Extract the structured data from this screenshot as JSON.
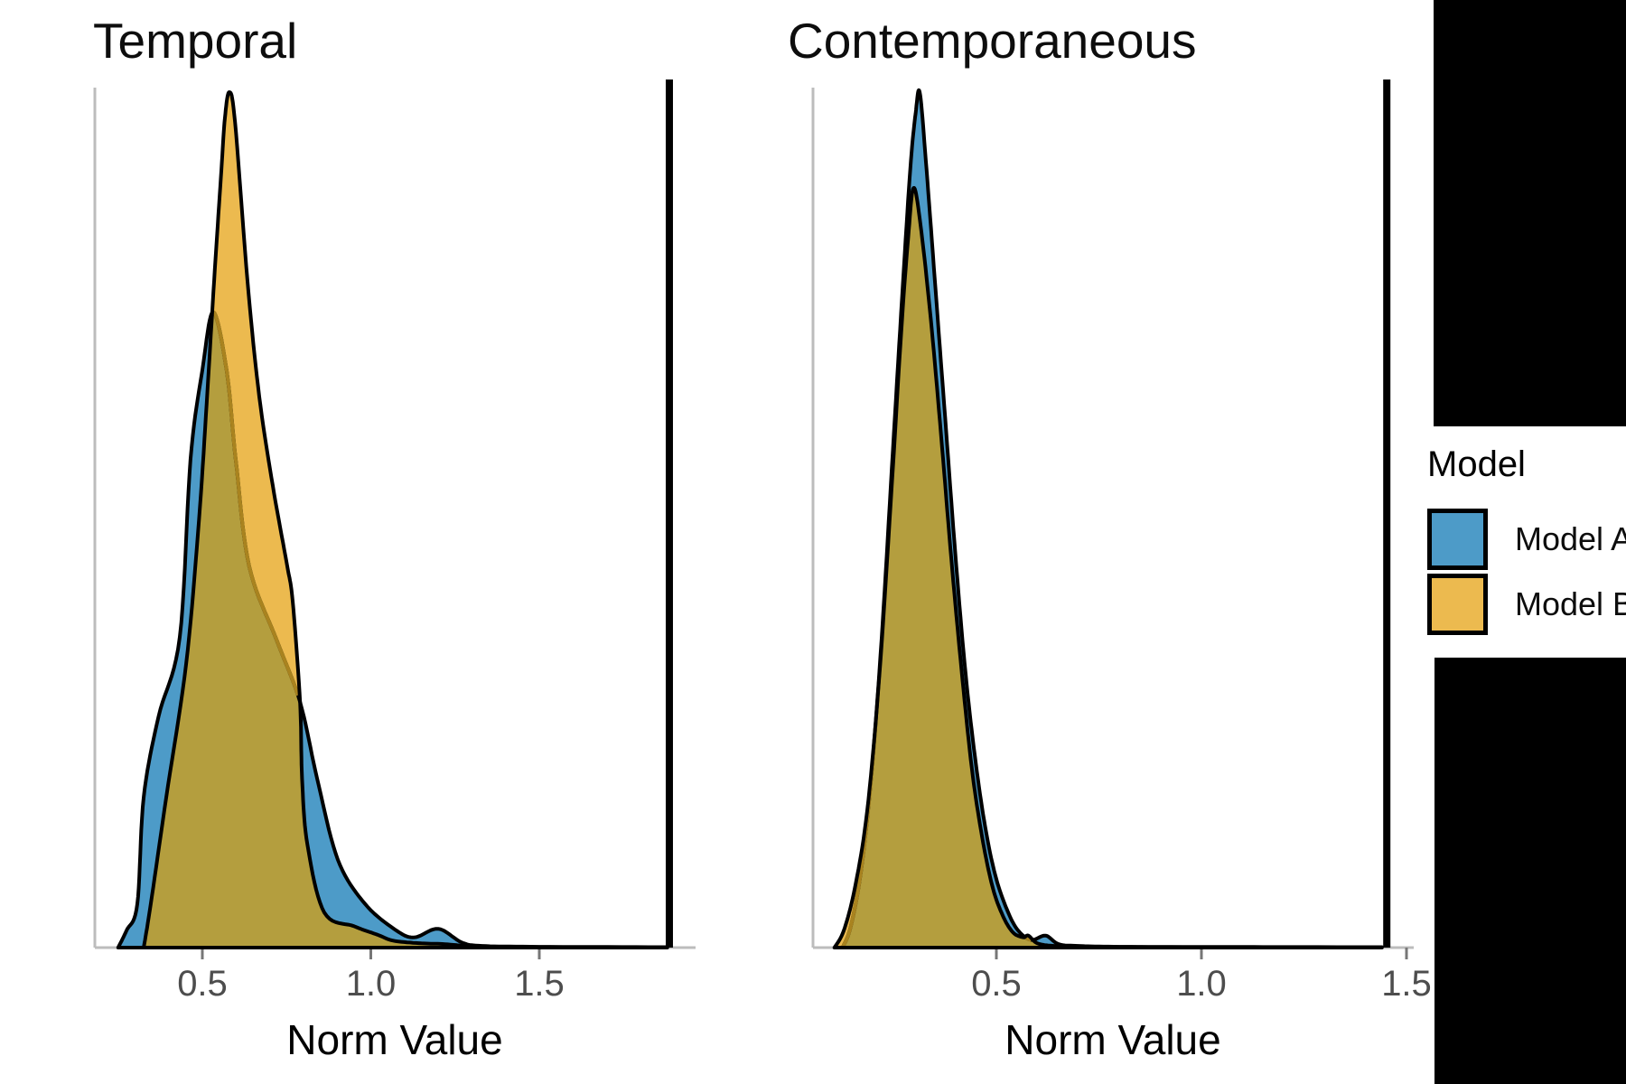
{
  "axis": {
    "x_label": "Norm Value",
    "tick_labels": [
      "0.5",
      "1.0",
      "1.5"
    ],
    "tick_values": [
      0.5,
      1.0,
      1.5
    ]
  },
  "legend": {
    "title": "Model",
    "items": [
      {
        "label": "Model A",
        "color": "#4d9bc8"
      },
      {
        "label": "Model B",
        "color": "#ecba4f"
      }
    ]
  },
  "colors": {
    "model_a_fill": "#4d9bc8",
    "model_b_fill": "#ecba4f",
    "overlap_fill": "#b49e3e",
    "curve_stroke": "#000000",
    "covered_stroke": "#a9831f",
    "vline": "#000000",
    "axis_line": "#bcbcbc",
    "tick_mark": "#777777",
    "tick_text": "#4d4d4d"
  },
  "chart_data": [
    {
      "type": "area",
      "title": "Temporal",
      "xlabel": "Norm Value",
      "x_ticks": [
        0.5,
        1.0,
        1.5
      ],
      "xlim": [
        0.18,
        1.96
      ],
      "vline": 1.886,
      "grid": false,
      "legend_position": "right",
      "series": [
        {
          "name": "Model A",
          "points": [
            [
              0.25,
              0
            ],
            [
              0.275,
              0.02
            ],
            [
              0.307,
              0.051
            ],
            [
              0.326,
              0.176
            ],
            [
              0.37,
              0.27
            ],
            [
              0.433,
              0.363
            ],
            [
              0.465,
              0.571
            ],
            [
              0.5,
              0.675
            ],
            [
              0.532,
              0.743
            ],
            [
              0.572,
              0.675
            ],
            [
              0.599,
              0.571
            ],
            [
              0.639,
              0.446
            ],
            [
              0.72,
              0.36
            ],
            [
              0.79,
              0.287
            ],
            [
              0.841,
              0.197
            ],
            [
              0.902,
              0.103
            ],
            [
              0.983,
              0.051
            ],
            [
              1.076,
              0.02
            ],
            [
              1.13,
              0.012
            ],
            [
              1.2,
              0.022
            ],
            [
              1.27,
              0.006
            ],
            [
              1.33,
              0.002
            ],
            [
              1.5,
              0.001
            ],
            [
              1.88,
              0.0005
            ]
          ]
        },
        {
          "name": "Model B",
          "points": [
            [
              0.326,
              0
            ],
            [
              0.347,
              0.051
            ],
            [
              0.393,
              0.176
            ],
            [
              0.452,
              0.332
            ],
            [
              0.49,
              0.5
            ],
            [
              0.515,
              0.65
            ],
            [
              0.535,
              0.78
            ],
            [
              0.555,
              0.9
            ],
            [
              0.567,
              0.97
            ],
            [
              0.58,
              1.0
            ],
            [
              0.597,
              0.965
            ],
            [
              0.634,
              0.779
            ],
            [
              0.669,
              0.644
            ],
            [
              0.709,
              0.54
            ],
            [
              0.75,
              0.45
            ],
            [
              0.768,
              0.405
            ],
            [
              0.79,
              0.287
            ],
            [
              0.796,
              0.197
            ],
            [
              0.812,
              0.12
            ],
            [
              0.862,
              0.041
            ],
            [
              0.95,
              0.025
            ],
            [
              1.02,
              0.015
            ],
            [
              1.068,
              0.008
            ],
            [
              1.15,
              0.005
            ],
            [
              1.22,
              0.004
            ],
            [
              1.3,
              0.001
            ]
          ]
        }
      ]
    },
    {
      "type": "area",
      "title": "Contemporaneous",
      "xlabel": "Norm Value",
      "x_ticks": [
        0.5,
        1.0,
        1.5
      ],
      "xlim": [
        0.05,
        1.52
      ],
      "vline": 1.452,
      "grid": false,
      "legend_position": "right",
      "series": [
        {
          "name": "Model A",
          "points": [
            [
              0.125,
              0
            ],
            [
              0.145,
              0.025
            ],
            [
              0.17,
              0.09
            ],
            [
              0.195,
              0.2
            ],
            [
              0.22,
              0.36
            ],
            [
              0.245,
              0.56
            ],
            [
              0.27,
              0.76
            ],
            [
              0.29,
              0.91
            ],
            [
              0.303,
              0.975
            ],
            [
              0.313,
              1.0
            ],
            [
              0.328,
              0.92
            ],
            [
              0.35,
              0.78
            ],
            [
              0.375,
              0.62
            ],
            [
              0.4,
              0.46
            ],
            [
              0.425,
              0.32
            ],
            [
              0.45,
              0.215
            ],
            [
              0.475,
              0.135
            ],
            [
              0.5,
              0.08
            ],
            [
              0.528,
              0.042
            ],
            [
              0.553,
              0.02
            ],
            [
              0.585,
              0.009
            ],
            [
              0.62,
              0.014
            ],
            [
              0.652,
              0.004
            ],
            [
              0.7,
              0.002
            ],
            [
              0.8,
              0.001
            ],
            [
              1.0,
              0.0008
            ],
            [
              1.44,
              0.0005
            ]
          ]
        },
        {
          "name": "Model B",
          "points": [
            [
              0.105,
              0
            ],
            [
              0.128,
              0.02
            ],
            [
              0.155,
              0.07
            ],
            [
              0.185,
              0.16
            ],
            [
              0.215,
              0.32
            ],
            [
              0.245,
              0.54
            ],
            [
              0.268,
              0.72
            ],
            [
              0.285,
              0.83
            ],
            [
              0.298,
              0.888
            ],
            [
              0.315,
              0.845
            ],
            [
              0.34,
              0.735
            ],
            [
              0.365,
              0.6
            ],
            [
              0.39,
              0.455
            ],
            [
              0.415,
              0.325
            ],
            [
              0.44,
              0.21
            ],
            [
              0.465,
              0.13
            ],
            [
              0.49,
              0.072
            ],
            [
              0.515,
              0.038
            ],
            [
              0.54,
              0.018
            ],
            [
              0.565,
              0.012
            ],
            [
              0.578,
              0.014
            ],
            [
              0.6,
              0.005
            ],
            [
              0.64,
              0.002
            ],
            [
              0.7,
              0.001
            ],
            [
              1.0,
              0.0005
            ]
          ]
        }
      ]
    }
  ]
}
